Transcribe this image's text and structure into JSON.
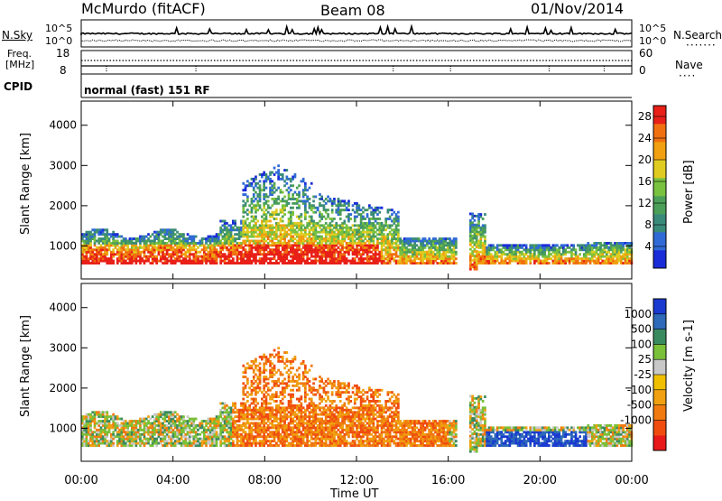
{
  "header": {
    "station": "McMurdo (fitACF)",
    "beam": "Beam 08",
    "date": "01/Nov/2014"
  },
  "top_panels": {
    "nsky_label": "N.Sky",
    "nsky_ticks": [
      "10^5",
      "10^0"
    ],
    "nsearch_label": "N.Search",
    "nsearch_ticks": [
      "10^5",
      "10^0"
    ],
    "freq_label": "Freq.",
    "freq_unit": "[MHz]",
    "freq_ticks": [
      "18",
      "8"
    ],
    "nave_label": "Nave",
    "nave_ticks": [
      "60",
      "0"
    ],
    "cpid_label": "CPID",
    "cpid_text": "normal (fast) 151 RF"
  },
  "colors": {
    "power_scale": [
      "#1a2bd8",
      "#2f6ad6",
      "#3a8a7a",
      "#4c9f58",
      "#79c240",
      "#e0cc20",
      "#f0a010",
      "#f07010",
      "#e82018"
    ],
    "velocity_scale": [
      "#e81a1a",
      "#f04c10",
      "#f07a10",
      "#f0a010",
      "#f0c000",
      "#c8c8c8",
      "#7ac038",
      "#3a8a60",
      "#2e6ab8",
      "#1a3ad0"
    ]
  },
  "chart_data": [
    {
      "type": "heatmap",
      "panel": "power",
      "ylabel": "Slant Range [km]",
      "xlabel": "Time UT",
      "xlim": [
        "00:00",
        "00:00"
      ],
      "x_ticks": [
        "00:00",
        "04:00",
        "08:00",
        "12:00",
        "16:00",
        "20:00",
        "00:00"
      ],
      "ylim": [
        180,
        4600
      ],
      "y_ticks": [
        "1000",
        "2000",
        "3000",
        "4000"
      ],
      "colorbar_label": "Power [dB]",
      "colorbar_ticks": [
        "4",
        "8",
        "12",
        "16",
        "20",
        "24",
        "28"
      ],
      "colorbar_range": [
        0,
        30
      ]
    },
    {
      "type": "heatmap",
      "panel": "velocity",
      "ylabel": "Slant Range [km]",
      "xlabel": "Time UT",
      "xlim": [
        "00:00",
        "00:00"
      ],
      "x_ticks": [
        "00:00",
        "04:00",
        "08:00",
        "12:00",
        "16:00",
        "20:00",
        "00:00"
      ],
      "ylim": [
        180,
        4600
      ],
      "y_ticks": [
        "1000",
        "2000",
        "3000",
        "4000"
      ],
      "colorbar_label": "Velocity [m s-1]",
      "colorbar_ticks": [
        "1000",
        "500",
        "100",
        "25",
        "-25",
        "-100",
        "-500",
        "-1000"
      ]
    }
  ]
}
